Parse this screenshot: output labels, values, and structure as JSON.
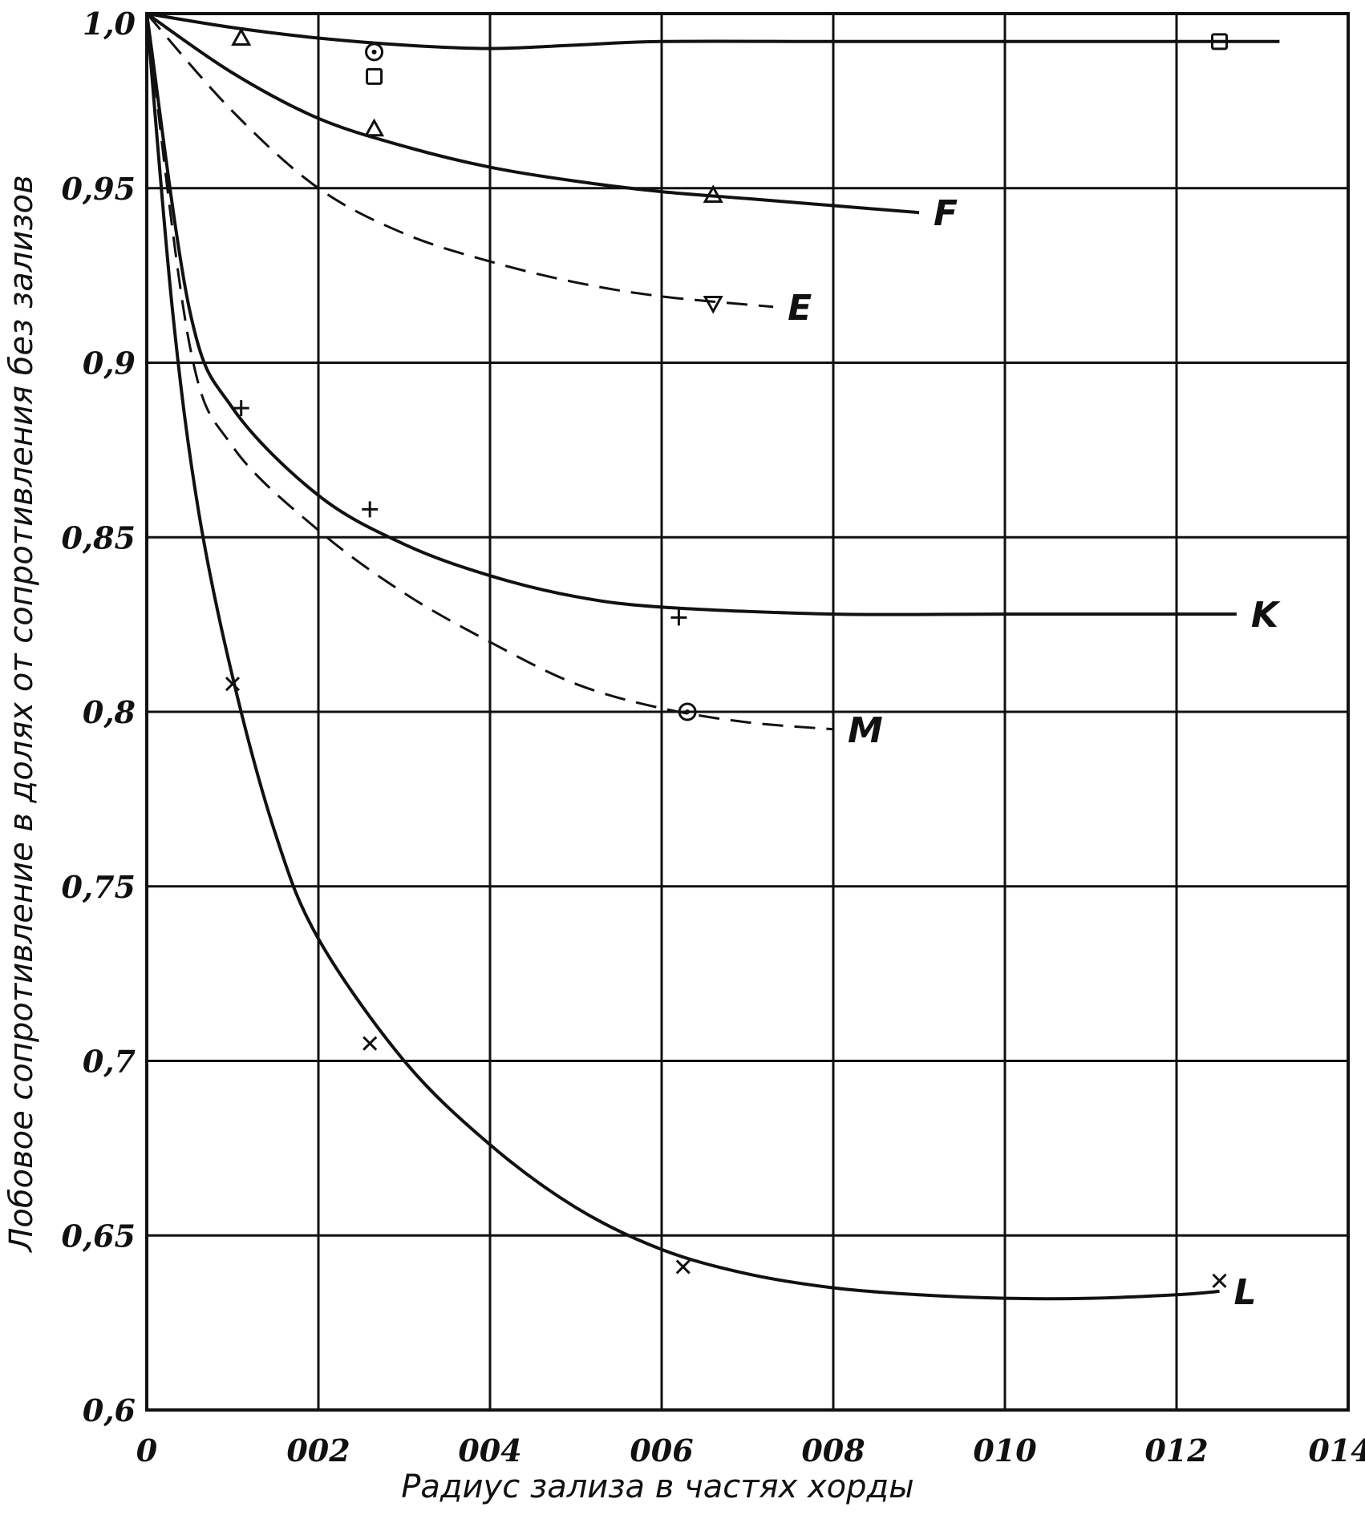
{
  "chart_data": {
    "type": "line",
    "title": "",
    "xlabel": "Радиус  зализа в частях хорды",
    "ylabel": "Лобовое сопротивление в долях от сопротивления без зализов",
    "xlim": [
      0,
      0.14
    ],
    "ylim": [
      0.6,
      1.0
    ],
    "grid": true,
    "x_ticks": [
      {
        "value": 0,
        "label": "0"
      },
      {
        "value": 0.02,
        "label": "002"
      },
      {
        "value": 0.04,
        "label": "004"
      },
      {
        "value": 0.06,
        "label": "006"
      },
      {
        "value": 0.08,
        "label": "008"
      },
      {
        "value": 0.1,
        "label": "010"
      },
      {
        "value": 0.12,
        "label": "012"
      },
      {
        "value": 0.14,
        "label": "014"
      }
    ],
    "y_ticks": [
      {
        "value": 1.0,
        "label": "1,0"
      },
      {
        "value": 0.95,
        "label": "0,95"
      },
      {
        "value": 0.9,
        "label": "0,9"
      },
      {
        "value": 0.85,
        "label": "0,85"
      },
      {
        "value": 0.8,
        "label": "0,8"
      },
      {
        "value": 0.75,
        "label": "0,75"
      },
      {
        "value": 0.7,
        "label": "0,7"
      },
      {
        "value": 0.65,
        "label": "0,65"
      },
      {
        "value": 0.6,
        "label": "0,6"
      }
    ],
    "series": [
      {
        "name": "",
        "style": "solid",
        "marker": "circle-square",
        "x": [
          0,
          0.01,
          0.02,
          0.03,
          0.04,
          0.05,
          0.06,
          0.08,
          0.1,
          0.12,
          0.132
        ],
        "y": [
          1.0,
          0.996,
          0.993,
          0.991,
          0.99,
          0.991,
          0.992,
          0.992,
          0.992,
          0.992,
          0.992
        ],
        "points_x": [
          0.0265,
          0.0265,
          0.125
        ],
        "points_y": [
          0.989,
          0.982,
          0.992
        ],
        "points_marker": [
          "circle",
          "square",
          "square"
        ]
      },
      {
        "name": "F",
        "style": "solid",
        "marker": "triangle",
        "x": [
          0,
          0.01,
          0.02,
          0.03,
          0.04,
          0.05,
          0.06,
          0.07,
          0.08,
          0.09
        ],
        "y": [
          1.0,
          0.983,
          0.97,
          0.962,
          0.956,
          0.952,
          0.949,
          0.947,
          0.945,
          0.943
        ],
        "points_x": [
          0.011,
          0.0265,
          0.066
        ],
        "points_y": [
          0.993,
          0.967,
          0.948
        ]
      },
      {
        "name": "E",
        "style": "dashed",
        "marker": "triangle-down",
        "x": [
          0,
          0.01,
          0.02,
          0.03,
          0.04,
          0.05,
          0.06,
          0.073
        ],
        "y": [
          1.0,
          0.972,
          0.95,
          0.937,
          0.929,
          0.923,
          0.919,
          0.916
        ],
        "points_x": [
          0.066
        ],
        "points_y": [
          0.917
        ]
      },
      {
        "name": "K",
        "style": "solid",
        "marker": "plus",
        "x": [
          0,
          0.005,
          0.01,
          0.02,
          0.03,
          0.04,
          0.05,
          0.06,
          0.08,
          0.1,
          0.12,
          0.127
        ],
        "y": [
          1.0,
          0.915,
          0.887,
          0.862,
          0.848,
          0.839,
          0.833,
          0.83,
          0.828,
          0.828,
          0.828,
          0.828
        ],
        "points_x": [
          0.011,
          0.026,
          0.062
        ],
        "points_y": [
          0.887,
          0.858,
          0.827
        ]
      },
      {
        "name": "M",
        "style": "dashed",
        "marker": "circle",
        "x": [
          0,
          0.005,
          0.01,
          0.02,
          0.03,
          0.04,
          0.05,
          0.06,
          0.07,
          0.08
        ],
        "y": [
          1.0,
          0.905,
          0.876,
          0.852,
          0.834,
          0.82,
          0.808,
          0.801,
          0.797,
          0.795
        ],
        "points_x": [
          0.063
        ],
        "points_y": [
          0.8
        ]
      },
      {
        "name": "L",
        "style": "solid",
        "marker": "x",
        "x": [
          0,
          0.003,
          0.006,
          0.01,
          0.015,
          0.02,
          0.03,
          0.04,
          0.05,
          0.06,
          0.07,
          0.08,
          0.09,
          0.1,
          0.11,
          0.12,
          0.125
        ],
        "y": [
          1.0,
          0.915,
          0.858,
          0.81,
          0.765,
          0.735,
          0.7,
          0.676,
          0.658,
          0.646,
          0.639,
          0.635,
          0.633,
          0.632,
          0.632,
          0.633,
          0.634
        ],
        "points_x": [
          0.01,
          0.026,
          0.0625,
          0.125
        ],
        "points_y": [
          0.808,
          0.705,
          0.641,
          0.637
        ]
      }
    ]
  }
}
